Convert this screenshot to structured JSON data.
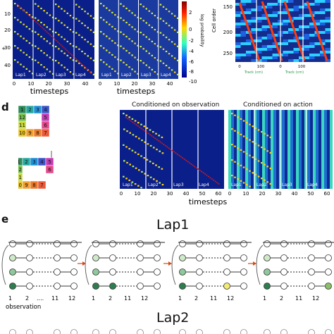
{
  "top": {
    "axis_ticks_y": [
      "10",
      "20",
      "30",
      "40"
    ],
    "axis_ticks_x": [
      "0",
      "10",
      "20",
      "30",
      "40"
    ],
    "lap_labels": [
      "Lap1",
      "Lap2",
      "Lap3",
      "Lap4"
    ],
    "xlabel": "timesteps",
    "colorbar_ticks": [
      "2",
      "0",
      "-2",
      "-4",
      "-6",
      "-8",
      "-10"
    ],
    "colorbar_label": "log probability",
    "right_ylabel": "Cell order",
    "right_ticks": [
      "200",
      "250"
    ],
    "right_partial_tick": "150",
    "right_xticks": [
      "0",
      "100",
      "0",
      "100",
      "0",
      "100"
    ],
    "right_xlabels": [
      "Track (cm)",
      "Track (cm)"
    ],
    "y_plus_label": "+"
  },
  "panel_d": {
    "letter": "d",
    "grid_top": [
      "1",
      "2",
      "3",
      "4",
      "12",
      "5",
      "11",
      "6",
      "10",
      "9",
      "8",
      "7"
    ],
    "grid_bottom": [
      "1",
      "2",
      "3",
      "4",
      "5",
      "12",
      "6",
      "11",
      "10",
      "9",
      "8",
      "7"
    ],
    "title_obs": "Conditioned on observation",
    "title_act": "Conditioned on action",
    "xlabel": "timesteps",
    "xticks_obs": [
      "0",
      "10",
      "20",
      "30",
      "40",
      "50",
      "60"
    ],
    "xticks_act": [
      "0",
      "10",
      "20",
      "30",
      "40",
      "50",
      "60"
    ],
    "lap_labels": [
      "Lap1",
      "Lap2",
      "Lap3",
      "Lap4"
    ]
  },
  "panel_e": {
    "letter": "e",
    "title_lap1": "Lap1",
    "title_lap2": "Lap2",
    "bottom_labels": [
      "1",
      "2",
      "....",
      "11",
      "12"
    ],
    "observation_label": "observation"
  },
  "colors": {
    "heat_bg": "#0b1f8a",
    "diag": "#ffd21a",
    "red_line": "#d11a1a",
    "arrow_red": "#d44a1a",
    "green_dark": "#2e7d4f",
    "green_light": "#cfe9c9",
    "yellow": "#f2ea73"
  }
}
